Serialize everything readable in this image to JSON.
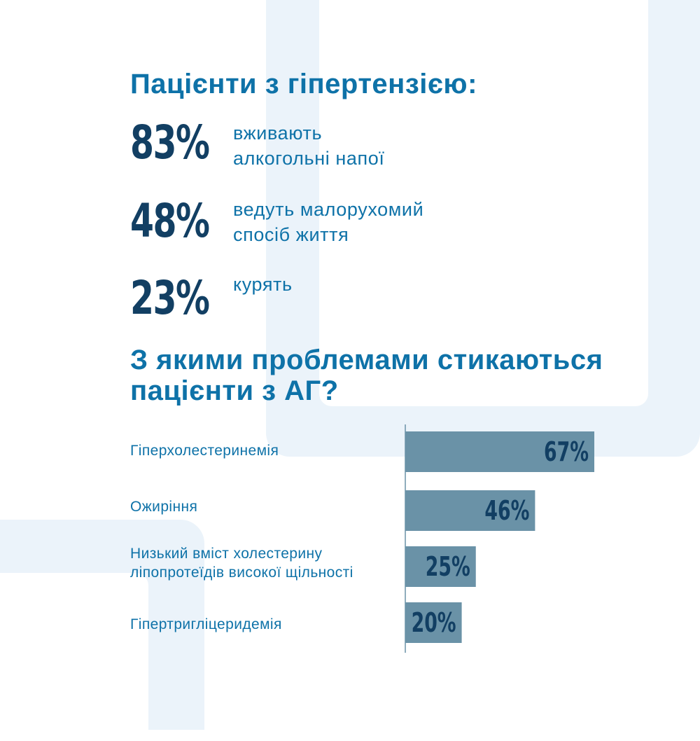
{
  "title_top": "Пацієнти з гіпертензією:",
  "stats": [
    {
      "value": "83%",
      "label_line1": "вживають",
      "label_line2": "алкогольні напої"
    },
    {
      "value": "48%",
      "label_line1": "ведуть малорухомий",
      "label_line2": "спосіб життя"
    },
    {
      "value": "23%",
      "label_line1": "курять",
      "label_line2": ""
    }
  ],
  "title_problems": "З якими проблемами стикаються пацієнти з АГ?",
  "chart_data": {
    "type": "bar",
    "orientation": "horizontal",
    "categories": [
      "Гіперхолестеринемія",
      "Ожиріння",
      "Низький вміст холестерину ліпопротеїдів високої щільності",
      "Гіпертригліцеридемія"
    ],
    "values": [
      67,
      46,
      25,
      20
    ],
    "value_labels": [
      "67%",
      "46%",
      "25%",
      "20%"
    ],
    "xlim": [
      0,
      100
    ],
    "bar_color": "#6a92a7",
    "label_color": "#123f63"
  },
  "colors": {
    "accent": "#0e72a8",
    "dark": "#123f63",
    "decor": "#ebf3fa"
  }
}
